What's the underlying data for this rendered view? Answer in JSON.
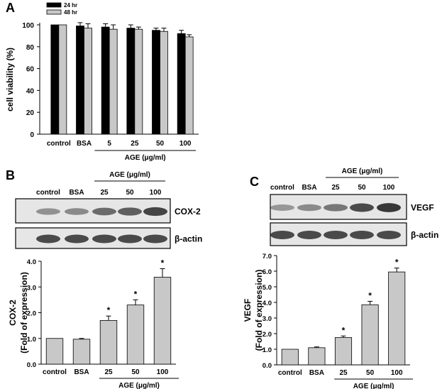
{
  "panels": {
    "A": {
      "letter": "A"
    },
    "B": {
      "letter": "B",
      "blot_lanes": [
        "control",
        "BSA",
        "25",
        "50",
        "100"
      ],
      "blot_treatment": "AGE (μg/ml)",
      "bands": [
        "COX-2",
        "β-actin"
      ]
    },
    "C": {
      "letter": "C",
      "blot_lanes": [
        "control",
        "BSA",
        "25",
        "50",
        "100"
      ],
      "blot_treatment": "AGE (μg/ml)",
      "bands": [
        "VEGF",
        "β-actin"
      ]
    }
  },
  "chart_data": [
    {
      "panel": "A",
      "type": "bar",
      "categories": [
        "control",
        "BSA",
        "5",
        "25",
        "50",
        "100"
      ],
      "series": [
        {
          "name": "24 hr",
          "values": [
            100,
            99,
            98,
            97,
            95,
            92
          ],
          "errors": [
            0,
            3,
            3,
            3,
            2,
            3
          ],
          "color": "#000000"
        },
        {
          "name": "48 hr",
          "values": [
            100,
            97,
            96,
            96,
            94,
            89
          ],
          "errors": [
            0,
            4,
            4,
            2,
            3,
            2
          ],
          "color": "#c8c8c8"
        }
      ],
      "xlabel": "",
      "group_label": "AGE (μg/ml)",
      "ylabel": "cell viability (%)",
      "ylim": [
        0,
        100
      ],
      "yticks": [
        "0",
        "20",
        "40",
        "60",
        "80",
        "100"
      ],
      "legend_position": "top-left"
    },
    {
      "panel": "B",
      "type": "bar",
      "categories": [
        "control",
        "BSA",
        "25",
        "50",
        "100"
      ],
      "values": [
        1.0,
        0.97,
        1.7,
        2.3,
        3.38
      ],
      "errors": [
        0,
        0.03,
        0.17,
        0.2,
        0.33
      ],
      "significant": [
        false,
        false,
        true,
        true,
        true
      ],
      "significance_mark": "*",
      "group_label": "AGE (μg/ml)",
      "ylabel": [
        "COX-2",
        "(Fold of expression)"
      ],
      "ylim": [
        0,
        4
      ],
      "yticks": [
        "0.0",
        "1.0",
        "2.0",
        "3.0",
        "4.0"
      ],
      "color": "#c8c8c8"
    },
    {
      "panel": "C",
      "type": "bar",
      "categories": [
        "control",
        "BSA",
        "25",
        "50",
        "100"
      ],
      "values": [
        1.0,
        1.1,
        1.75,
        3.85,
        5.95
      ],
      "errors": [
        0,
        0.05,
        0.1,
        0.22,
        0.25
      ],
      "significant": [
        false,
        false,
        true,
        true,
        true
      ],
      "significance_mark": "*",
      "group_label": "AGE (μg/ml)",
      "ylabel": [
        "VEGF",
        "(Fold of expression)"
      ],
      "ylim": [
        0,
        7
      ],
      "yticks": [
        "0.0",
        "1.0",
        "2.0",
        "3.0",
        "4.0",
        "5.0",
        "6.0",
        "7.0"
      ],
      "color": "#c8c8c8"
    }
  ]
}
